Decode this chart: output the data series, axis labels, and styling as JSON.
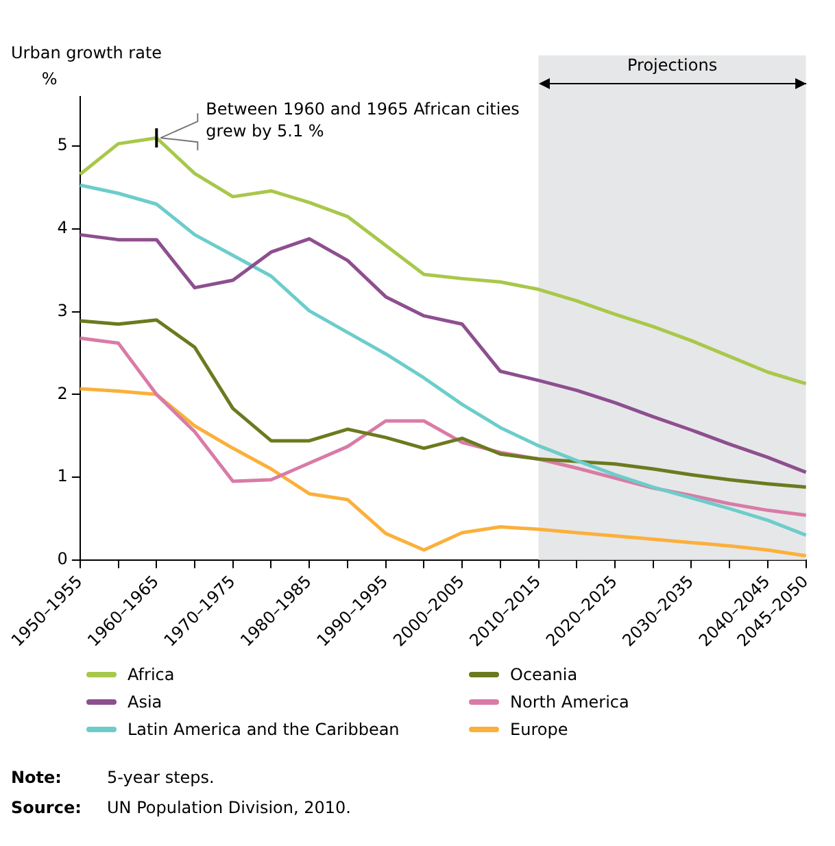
{
  "chart_data": {
    "type": "line",
    "title": "Urban growth rate",
    "ylabel": "%",
    "categories": [
      "1950–1955",
      null,
      "1960–1965",
      null,
      "1970–1975",
      null,
      "1980–1985",
      null,
      "1990–1995",
      null,
      "2000–2005",
      null,
      "2010–2015",
      null,
      "2020–2025",
      null,
      "2030–2035",
      null,
      "2040–2045",
      "2045–2050"
    ],
    "series": [
      {
        "name": "Africa",
        "color": "#a8c84a",
        "values": [
          4.66,
          5.03,
          5.1,
          4.67,
          4.39,
          4.46,
          4.32,
          4.15,
          3.8,
          3.45,
          3.4,
          3.36,
          3.27,
          3.13,
          2.97,
          2.82,
          2.65,
          2.46,
          2.27,
          2.13
        ]
      },
      {
        "name": "Asia",
        "color": "#8d4f8f",
        "values": [
          3.93,
          3.87,
          3.87,
          3.29,
          3.38,
          3.72,
          3.88,
          3.62,
          3.18,
          2.95,
          2.85,
          2.28,
          2.17,
          2.05,
          1.9,
          1.73,
          1.57,
          1.4,
          1.24,
          1.06
        ]
      },
      {
        "name": "Latin America and the Caribbean",
        "color": "#6ccdcb",
        "values": [
          4.53,
          4.43,
          4.3,
          3.93,
          3.68,
          3.43,
          3.01,
          2.75,
          2.49,
          2.2,
          1.88,
          1.6,
          1.38,
          1.2,
          1.03,
          0.88,
          0.75,
          0.62,
          0.48,
          0.3
        ]
      },
      {
        "name": "Oceania",
        "color": "#6b7a1e",
        "values": [
          2.89,
          2.85,
          2.9,
          2.57,
          1.83,
          1.44,
          1.44,
          1.58,
          1.48,
          1.35,
          1.47,
          1.28,
          1.22,
          1.19,
          1.16,
          1.1,
          1.03,
          0.97,
          0.92,
          0.88
        ]
      },
      {
        "name": "North America",
        "color": "#d97ba6",
        "values": [
          2.68,
          2.62,
          2.0,
          1.55,
          0.95,
          0.97,
          1.17,
          1.37,
          1.68,
          1.68,
          1.42,
          1.3,
          1.22,
          1.11,
          0.99,
          0.87,
          0.78,
          0.68,
          0.6,
          0.54
        ]
      },
      {
        "name": "Europe",
        "color": "#fbb03b",
        "values": [
          2.07,
          2.04,
          2.0,
          1.62,
          1.35,
          1.1,
          0.8,
          0.73,
          0.32,
          0.12,
          0.33,
          0.4,
          0.37,
          0.33,
          0.29,
          0.25,
          0.21,
          0.17,
          0.12,
          0.05
        ]
      }
    ],
    "ylim": [
      0,
      5.6
    ],
    "yticks": [
      0,
      1,
      2,
      3,
      4,
      5
    ],
    "grid": false,
    "legend": "bottom",
    "marker": "none",
    "line_style": "solid",
    "bands": [
      {
        "axis": "x",
        "from": "2010–2015",
        "to": "2045–2050",
        "label": "Projections",
        "color": "#e6e7e9"
      }
    ],
    "annotations": [
      {
        "text": "Between 1960 and 1965 African cities grew by 5.1 %",
        "x": "1960–1965",
        "y": 5.1
      },
      "Note: 5-year steps.",
      "Source: UN Population Division, 2010."
    ]
  }
}
